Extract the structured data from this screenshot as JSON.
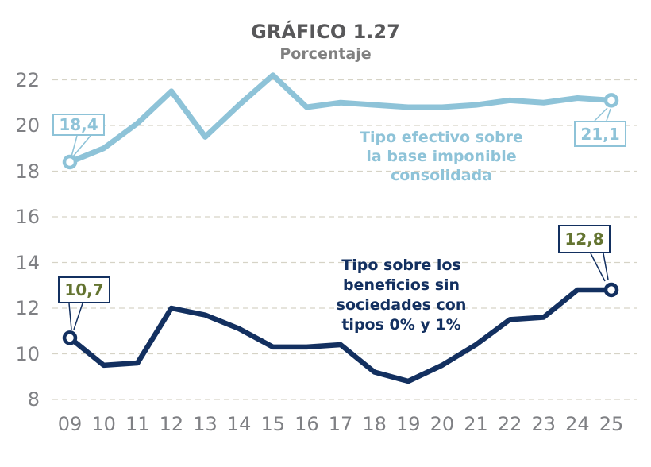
{
  "chart_data": {
    "type": "line",
    "title": "GRÁFICO 1.27",
    "subtitle": "Porcentaje",
    "x_labels": [
      "09",
      "10",
      "11",
      "12",
      "13",
      "14",
      "15",
      "16",
      "17",
      "18",
      "19",
      "20",
      "21",
      "22",
      "23",
      "24",
      "25"
    ],
    "y_ticks": [
      8,
      10,
      12,
      14,
      16,
      18,
      20,
      22
    ],
    "ylim": [
      8,
      22
    ],
    "grid": "horizontal-dashed",
    "legend_position": "inline-annotations",
    "series": [
      {
        "id": "tipo-efectivo",
        "name": "Tipo efectivo sobre la base imponible consolidada",
        "name_lines": [
          "Tipo efectivo sobre",
          "la base imponible",
          "consolidada"
        ],
        "color": "#8EC3D8",
        "values": [
          18.4,
          19.0,
          20.1,
          21.5,
          19.5,
          20.9,
          22.2,
          20.8,
          21.0,
          20.9,
          20.8,
          20.8,
          20.9,
          21.1,
          21.0,
          21.2,
          21.1
        ],
        "first_point_label": "18,4",
        "last_point_label": "21,1"
      },
      {
        "id": "tipo-beneficios",
        "name": "Tipo sobre los beneficios sin sociedades con tipos 0% y 1%",
        "name_lines": [
          "Tipo sobre los",
          "beneficios sin",
          "sociedades con",
          "tipos 0% y 1%"
        ],
        "color": "#133060",
        "value_label_color": "#647431",
        "values": [
          10.7,
          9.5,
          9.6,
          12.0,
          11.7,
          11.1,
          10.3,
          10.3,
          10.4,
          9.2,
          8.8,
          9.5,
          10.4,
          11.5,
          11.6,
          12.8,
          12.8
        ],
        "first_point_label": "10,7",
        "last_point_label": "12,8"
      }
    ],
    "colors": {
      "grid": "#D6D3C6",
      "tick_text": "#7F8084",
      "title_text": "#58585A",
      "subtitle_text": "#808080"
    }
  }
}
